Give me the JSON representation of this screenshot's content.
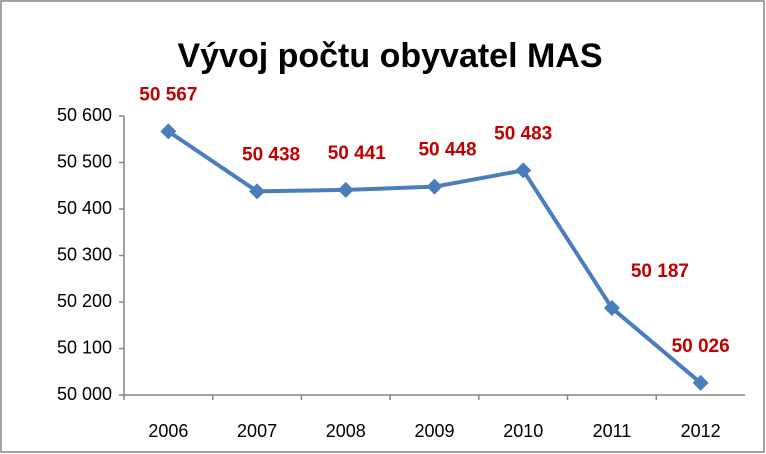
{
  "chart_data": {
    "type": "line",
    "title": "Vývoj počtu obyvatel  MAS",
    "categories": [
      "2006",
      "2007",
      "2008",
      "2009",
      "2010",
      "2011",
      "2012"
    ],
    "series": [
      {
        "name": null,
        "color": "#4a7ebb",
        "values": [
          50567,
          50438,
          50441,
          50448,
          50483,
          50187,
          50026
        ],
        "value_labels": [
          "50 567",
          "50 438",
          "50 441",
          "50 448",
          "50 483",
          "50 187",
          "50 026"
        ],
        "label_color": "#c00000"
      }
    ],
    "ylim": [
      50000,
      50600
    ],
    "yticks": [
      {
        "value": 50000,
        "label": "50 000"
      },
      {
        "value": 50100,
        "label": "50 100"
      },
      {
        "value": 50200,
        "label": "50 200"
      },
      {
        "value": 50300,
        "label": "50 300"
      },
      {
        "value": 50400,
        "label": "50 400"
      },
      {
        "value": 50500,
        "label": "50 500"
      },
      {
        "value": 50600,
        "label": "50 600"
      }
    ],
    "grid": false
  }
}
